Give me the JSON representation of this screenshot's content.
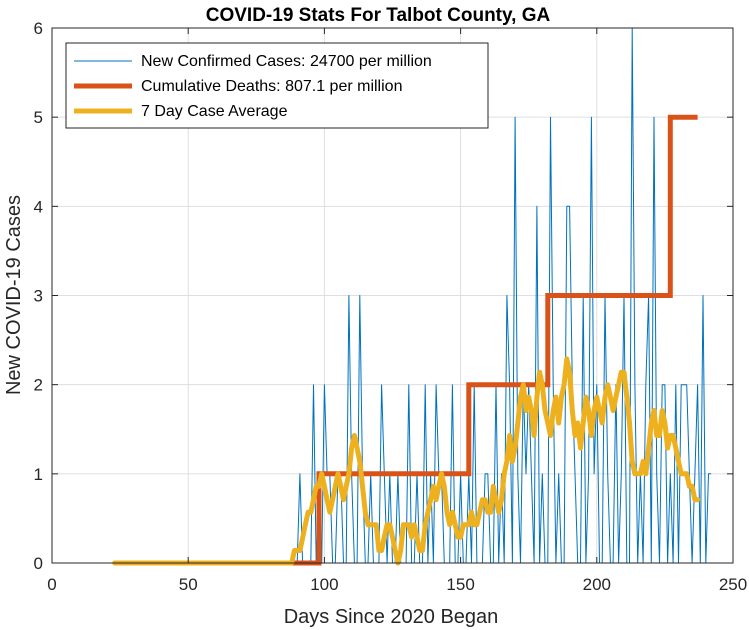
{
  "chart_data": {
    "type": "line",
    "title": "COVID-19 Stats For Talbot County, GA",
    "xlabel": "Days Since 2020 Began",
    "ylabel": "New COVID-19 Cases",
    "xlim": [
      0,
      250
    ],
    "ylim": [
      0,
      6
    ],
    "xticks": [
      0,
      50,
      100,
      150,
      200,
      250
    ],
    "yticks": [
      0,
      1,
      2,
      3,
      4,
      5,
      6
    ],
    "grid": true,
    "legend_position": "top-left",
    "series": [
      {
        "name": "New Confirmed Cases: 24700 per million",
        "color": "#0072BD",
        "x_start": 23,
        "values": [
          0,
          0,
          0,
          0,
          0,
          0,
          0,
          0,
          0,
          0,
          0,
          0,
          0,
          0,
          0,
          0,
          0,
          0,
          0,
          0,
          0,
          0,
          0,
          0,
          0,
          0,
          0,
          0,
          0,
          0,
          0,
          0,
          0,
          0,
          0,
          0,
          0,
          0,
          0,
          0,
          0,
          0,
          0,
          0,
          0,
          0,
          0,
          0,
          0,
          0,
          0,
          0,
          0,
          0,
          0,
          0,
          0,
          0,
          0,
          0,
          0,
          0,
          0,
          0,
          0,
          0,
          0,
          0,
          1,
          0,
          0,
          0,
          0,
          2,
          0,
          1,
          0,
          2,
          1,
          1,
          0,
          0,
          1,
          1,
          0,
          0,
          3,
          1,
          0,
          0,
          3,
          1,
          0,
          0,
          1,
          0,
          0,
          0,
          2,
          1,
          0,
          1,
          0,
          0,
          1,
          0,
          0,
          0,
          2,
          0,
          0,
          1,
          0,
          0,
          2,
          0,
          1,
          0,
          2,
          1,
          1,
          0,
          0,
          0,
          2,
          0,
          0,
          1,
          0,
          0,
          1,
          0,
          2,
          0,
          0,
          0,
          1,
          1,
          0,
          0,
          2,
          0,
          1,
          0,
          3,
          2,
          0,
          5,
          1,
          0,
          2,
          1,
          2,
          1,
          0,
          4,
          0,
          1,
          0,
          0,
          5,
          2,
          0,
          1,
          0,
          0,
          4,
          4,
          2,
          1,
          0,
          0,
          3,
          0,
          1,
          5,
          1,
          2,
          0,
          0,
          3,
          1,
          0,
          0,
          2,
          0,
          1,
          3,
          0,
          0,
          6,
          2,
          0,
          1,
          0,
          2,
          3,
          0,
          5,
          1,
          0,
          2,
          2,
          0,
          1,
          0,
          2,
          0,
          2,
          2,
          2,
          1,
          0,
          1,
          2,
          0,
          3,
          0,
          1,
          1
        ]
      },
      {
        "name": "Cumulative Deaths: 807.1 per million",
        "color": "#D95319",
        "steps": [
          [
            23,
            0
          ],
          [
            98,
            0
          ],
          [
            98,
            1
          ],
          [
            153,
            1
          ],
          [
            153,
            2
          ],
          [
            182,
            2
          ],
          [
            182,
            3
          ],
          [
            227,
            3
          ],
          [
            227,
            5
          ],
          [
            237,
            5
          ]
        ]
      },
      {
        "name": "7 Day Case Average",
        "color": "#EDB120",
        "points": [
          [
            23,
            0
          ],
          [
            88,
            0
          ],
          [
            89,
            0.14
          ],
          [
            91,
            0.14
          ],
          [
            92,
            0.28
          ],
          [
            93,
            0.43
          ],
          [
            94,
            0.57
          ],
          [
            95,
            0.57
          ],
          [
            96,
            0.71
          ],
          [
            97,
            0.86
          ],
          [
            98,
            0.86
          ],
          [
            99,
            1.0
          ],
          [
            100,
            0.86
          ],
          [
            101,
            0.71
          ],
          [
            102,
            0.57
          ],
          [
            103,
            0.71
          ],
          [
            104,
            0.86
          ],
          [
            105,
            1.0
          ],
          [
            106,
            0.86
          ],
          [
            107,
            0.71
          ],
          [
            108,
            0.86
          ],
          [
            109,
            1.0
          ],
          [
            110,
            1.29
          ],
          [
            111,
            1.43
          ],
          [
            112,
            1.29
          ],
          [
            113,
            1.14
          ],
          [
            114,
            0.86
          ],
          [
            115,
            0.57
          ],
          [
            116,
            0.43
          ],
          [
            117,
            0.43
          ],
          [
            118,
            0.43
          ],
          [
            119,
            0.43
          ],
          [
            120,
            0.14
          ],
          [
            121,
            0.14
          ],
          [
            122,
            0.29
          ],
          [
            123,
            0.43
          ],
          [
            124,
            0.43
          ],
          [
            125,
            0.29
          ],
          [
            126,
            0.14
          ],
          [
            127,
            0
          ],
          [
            128,
            0.14
          ],
          [
            129,
            0.43
          ],
          [
            130,
            0.43
          ],
          [
            131,
            0.43
          ],
          [
            132,
            0.29
          ],
          [
            133,
            0.43
          ],
          [
            134,
            0.29
          ],
          [
            135,
            0.14
          ],
          [
            136,
            0.14
          ],
          [
            137,
            0.43
          ],
          [
            138,
            0.57
          ],
          [
            139,
            0.71
          ],
          [
            140,
            0.86
          ],
          [
            141,
            0.71
          ],
          [
            142,
            0.86
          ],
          [
            143,
            1.0
          ],
          [
            144,
            0.86
          ],
          [
            145,
            0.57
          ],
          [
            146,
            0.43
          ],
          [
            147,
            0.57
          ],
          [
            148,
            0.43
          ],
          [
            149,
            0.29
          ],
          [
            150,
            0.29
          ],
          [
            151,
            0.43
          ],
          [
            152,
            0.43
          ],
          [
            153,
            0.43
          ],
          [
            154,
            0.57
          ],
          [
            155,
            0.43
          ],
          [
            156,
            0.43
          ],
          [
            157,
            0.57
          ],
          [
            158,
            0.71
          ],
          [
            159,
            0.71
          ],
          [
            160,
            0.57
          ],
          [
            161,
            0.57
          ],
          [
            162,
            0.86
          ],
          [
            163,
            0.71
          ],
          [
            164,
            0.57
          ],
          [
            165,
            0.71
          ],
          [
            166,
            1.0
          ],
          [
            167,
            1.14
          ],
          [
            168,
            1.43
          ],
          [
            169,
            1.14
          ],
          [
            170,
            1.29
          ],
          [
            171,
            1.57
          ],
          [
            172,
            1.86
          ],
          [
            173,
            2.0
          ],
          [
            174,
            1.71
          ],
          [
            175,
            1.86
          ],
          [
            176,
            1.71
          ],
          [
            177,
            1.43
          ],
          [
            178,
            1.86
          ],
          [
            179,
            2.14
          ],
          [
            180,
            2.0
          ],
          [
            181,
            1.71
          ],
          [
            182,
            1.57
          ],
          [
            183,
            1.43
          ],
          [
            184,
            1.71
          ],
          [
            185,
            1.86
          ],
          [
            186,
            1.57
          ],
          [
            187,
            1.86
          ],
          [
            188,
            2.0
          ],
          [
            189,
            2.29
          ],
          [
            190,
            2.14
          ],
          [
            191,
            1.71
          ],
          [
            192,
            1.43
          ],
          [
            193,
            1.57
          ],
          [
            194,
            1.29
          ],
          [
            195,
            1.57
          ],
          [
            196,
            1.86
          ],
          [
            197,
            1.71
          ],
          [
            198,
            1.43
          ],
          [
            199,
            1.71
          ],
          [
            200,
            1.86
          ],
          [
            201,
            1.71
          ],
          [
            202,
            1.57
          ],
          [
            203,
            1.86
          ],
          [
            204,
            2.0
          ],
          [
            205,
            1.86
          ],
          [
            206,
            1.71
          ],
          [
            207,
            1.86
          ],
          [
            208,
            2.0
          ],
          [
            209,
            2.14
          ],
          [
            210,
            2.14
          ],
          [
            211,
            1.86
          ],
          [
            212,
            1.57
          ],
          [
            213,
            1.14
          ],
          [
            214,
            1.0
          ],
          [
            215,
            1.0
          ],
          [
            216,
            1.0
          ],
          [
            217,
            1.14
          ],
          [
            218,
            1.0
          ],
          [
            219,
            1.29
          ],
          [
            220,
            1.57
          ],
          [
            221,
            1.71
          ],
          [
            222,
            1.43
          ],
          [
            223,
            1.43
          ],
          [
            224,
            1.71
          ],
          [
            225,
            1.57
          ],
          [
            226,
            1.29
          ],
          [
            227,
            1.43
          ],
          [
            228,
            1.43
          ],
          [
            229,
            1.29
          ],
          [
            230,
            1.14
          ],
          [
            231,
            1.0
          ],
          [
            232,
            1.0
          ],
          [
            233,
            1.0
          ],
          [
            234,
            0.86
          ],
          [
            235,
            0.86
          ],
          [
            236,
            0.71
          ],
          [
            237,
            0.71
          ]
        ]
      }
    ]
  }
}
